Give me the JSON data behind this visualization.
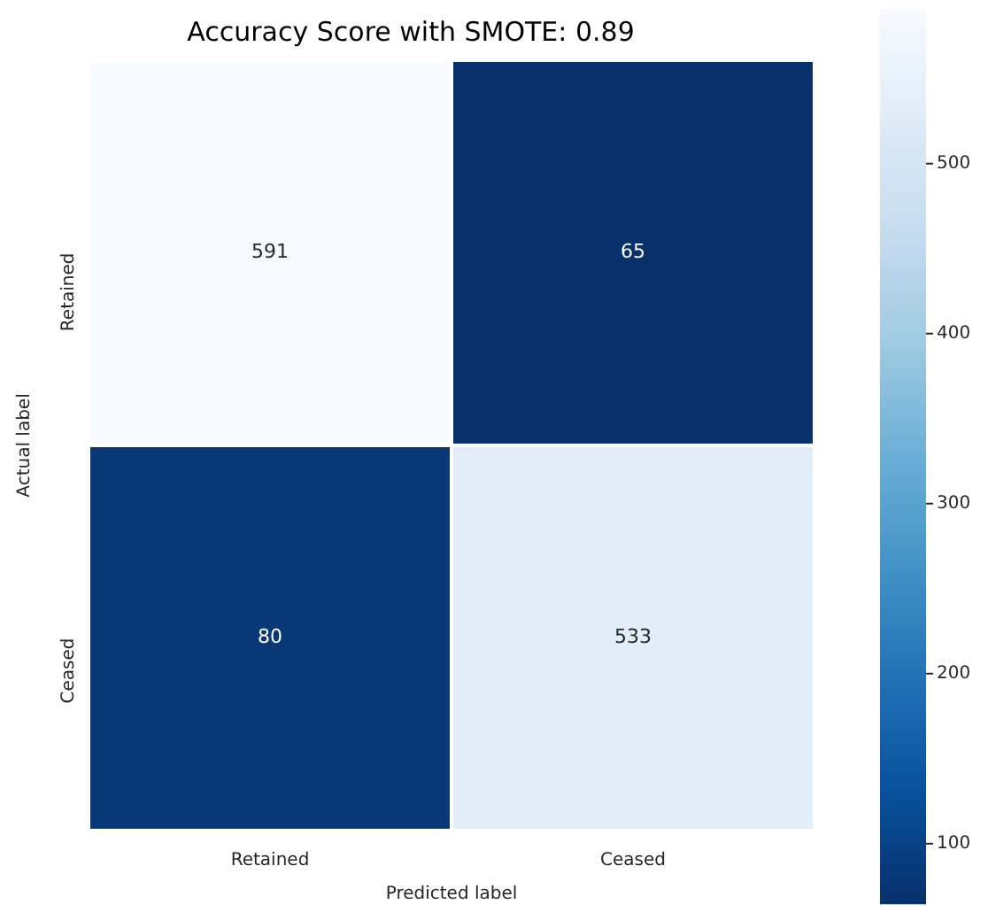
{
  "chart_data": {
    "type": "heatmap",
    "title": "Accuracy Score with SMOTE: 0.89",
    "xlabel": "Predicted label",
    "ylabel": "Actual label",
    "categories": [
      "Retained",
      "Ceased"
    ],
    "y_categories": [
      "Retained",
      "Ceased"
    ],
    "cells": [
      [
        591,
        65
      ],
      [
        80,
        533
      ]
    ],
    "clim": [
      65,
      591
    ],
    "cticks": [
      100,
      200,
      300,
      400,
      500
    ],
    "data_labels": true
  }
}
